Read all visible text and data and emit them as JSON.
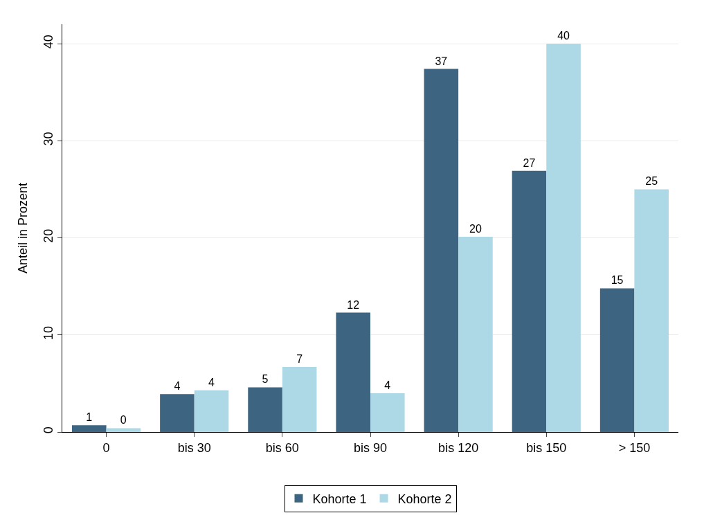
{
  "chart_data": {
    "type": "bar",
    "ylabel": "Anteil in Prozent",
    "categories": [
      "0",
      "bis 30",
      "bis 60",
      "bis 90",
      "bis 120",
      "bis 150",
      "> 150"
    ],
    "series": [
      {
        "name": "Kohorte 1",
        "color": "#3d6480",
        "values": [
          0.7,
          3.9,
          4.6,
          12.3,
          37.4,
          26.9,
          14.8
        ],
        "value_labels": [
          "1",
          "4",
          "5",
          "12",
          "37",
          "27",
          "15"
        ]
      },
      {
        "name": "Kohorte 2",
        "color": "#add8e6",
        "values": [
          0.4,
          4.3,
          6.7,
          4.0,
          20.1,
          40.0,
          25.0
        ],
        "value_labels": [
          "0",
          "4",
          "7",
          "4",
          "20",
          "40",
          "25"
        ]
      }
    ],
    "ylim": [
      0,
      42
    ],
    "yticks": [
      0,
      10,
      20,
      30,
      40
    ],
    "grid": "y",
    "legend": "bottom"
  }
}
